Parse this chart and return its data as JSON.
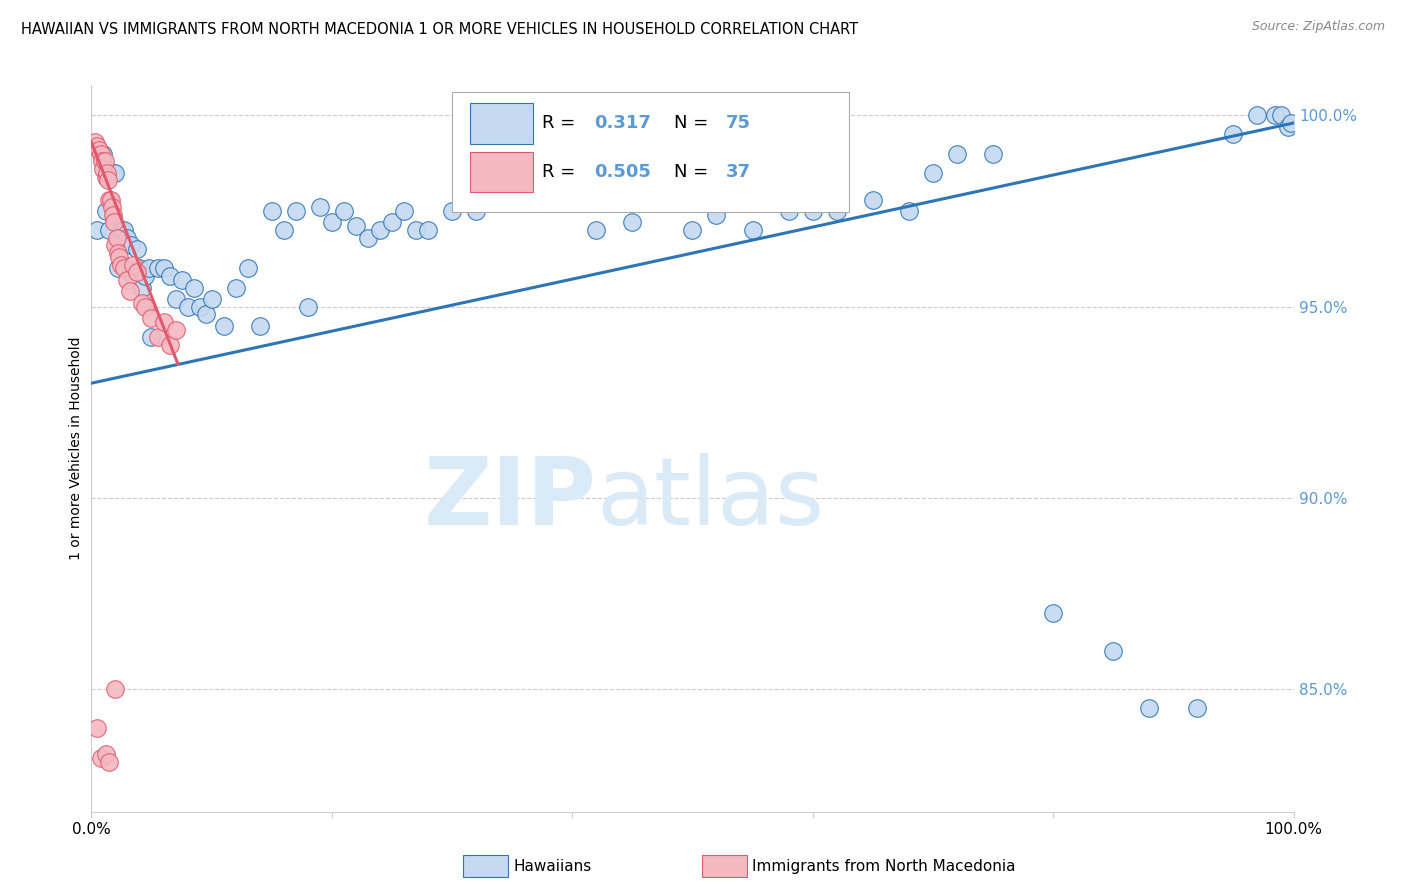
{
  "title": "HAWAIIAN VS IMMIGRANTS FROM NORTH MACEDONIA 1 OR MORE VEHICLES IN HOUSEHOLD CORRELATION CHART",
  "source": "Source: ZipAtlas.com",
  "ylabel": "1 or more Vehicles in Household",
  "legend_hawaiians": "Hawaiians",
  "legend_immigrants": "Immigrants from North Macedonia",
  "r_hawaiians": 0.317,
  "n_hawaiians": 75,
  "r_immigrants": 0.505,
  "n_immigrants": 37,
  "blue_color": "#c5d9f1",
  "pink_color": "#f4b8c1",
  "blue_line_color": "#2e75b6",
  "pink_line_color": "#e05a6e",
  "axis_label_color": "#5b9bd5",
  "watermark_color": "#daeaf7",
  "background": "#ffffff",
  "title_fontsize": 10.5,
  "source_fontsize": 9,
  "ytick_labels": [
    "85.0%",
    "90.0%",
    "95.0%",
    "100.0%"
  ],
  "ytick_values": [
    0.85,
    0.9,
    0.95,
    1.0
  ],
  "xrange": [
    0.0,
    1.0
  ],
  "yrange": [
    0.818,
    1.008
  ],
  "blue_scatter_x": [
    0.005,
    0.01,
    0.012,
    0.015,
    0.018,
    0.02,
    0.022,
    0.025,
    0.027,
    0.03,
    0.033,
    0.035,
    0.038,
    0.04,
    0.042,
    0.045,
    0.048,
    0.05,
    0.055,
    0.06,
    0.065,
    0.07,
    0.075,
    0.08,
    0.085,
    0.09,
    0.095,
    0.1,
    0.11,
    0.12,
    0.13,
    0.14,
    0.15,
    0.16,
    0.17,
    0.18,
    0.19,
    0.2,
    0.21,
    0.22,
    0.23,
    0.24,
    0.25,
    0.26,
    0.27,
    0.28,
    0.3,
    0.32,
    0.35,
    0.38,
    0.4,
    0.42,
    0.45,
    0.48,
    0.5,
    0.52,
    0.55,
    0.58,
    0.6,
    0.62,
    0.65,
    0.68,
    0.7,
    0.72,
    0.75,
    0.8,
    0.85,
    0.88,
    0.92,
    0.95,
    0.97,
    0.985,
    0.99,
    0.995,
    0.998
  ],
  "blue_scatter_y": [
    0.97,
    0.99,
    0.975,
    0.97,
    0.985,
    0.985,
    0.96,
    0.97,
    0.97,
    0.968,
    0.966,
    0.958,
    0.965,
    0.96,
    0.955,
    0.958,
    0.96,
    0.942,
    0.96,
    0.96,
    0.958,
    0.952,
    0.957,
    0.95,
    0.955,
    0.95,
    0.948,
    0.952,
    0.945,
    0.955,
    0.96,
    0.945,
    0.975,
    0.97,
    0.975,
    0.95,
    0.976,
    0.972,
    0.975,
    0.971,
    0.968,
    0.97,
    0.972,
    0.975,
    0.97,
    0.97,
    0.975,
    0.975,
    0.978,
    0.985,
    0.988,
    0.97,
    0.972,
    0.978,
    0.97,
    0.974,
    0.97,
    0.975,
    0.975,
    0.975,
    0.978,
    0.975,
    0.985,
    0.99,
    0.99,
    0.87,
    0.86,
    0.845,
    0.845,
    0.995,
    1.0,
    1.0,
    1.0,
    0.997,
    0.998
  ],
  "pink_scatter_x": [
    0.003,
    0.005,
    0.006,
    0.008,
    0.009,
    0.01,
    0.011,
    0.012,
    0.013,
    0.014,
    0.015,
    0.016,
    0.017,
    0.018,
    0.019,
    0.02,
    0.021,
    0.022,
    0.023,
    0.025,
    0.027,
    0.03,
    0.032,
    0.035,
    0.038,
    0.042,
    0.045,
    0.05,
    0.055,
    0.06,
    0.065,
    0.07,
    0.005,
    0.008,
    0.012,
    0.015,
    0.02
  ],
  "pink_scatter_y": [
    0.993,
    0.992,
    0.991,
    0.99,
    0.988,
    0.986,
    0.988,
    0.984,
    0.985,
    0.983,
    0.978,
    0.978,
    0.976,
    0.974,
    0.972,
    0.966,
    0.968,
    0.964,
    0.963,
    0.961,
    0.96,
    0.957,
    0.954,
    0.961,
    0.959,
    0.951,
    0.95,
    0.947,
    0.942,
    0.946,
    0.94,
    0.944,
    0.84,
    0.832,
    0.833,
    0.831,
    0.85
  ],
  "blue_trend_x0": 0.0,
  "blue_trend_x1": 1.0,
  "blue_trend_y0": 0.93,
  "blue_trend_y1": 0.998,
  "pink_trend_x0": 0.0,
  "pink_trend_x1": 0.072,
  "pink_trend_y0": 0.993,
  "pink_trend_y1": 0.935
}
